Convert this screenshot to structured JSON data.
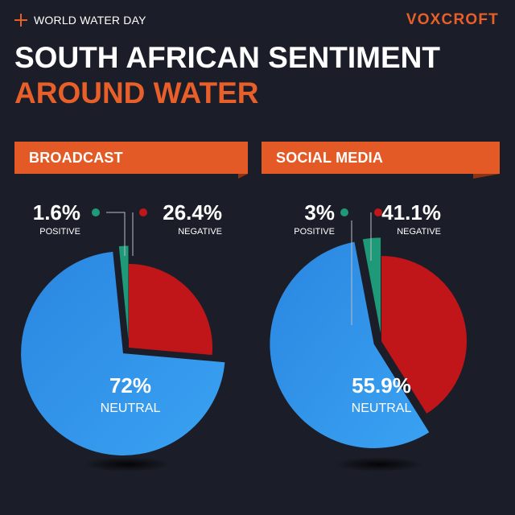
{
  "header": {
    "eyebrow": "WORLD WATER DAY",
    "brand": "VOXCROFT",
    "title_line1": "SOUTH AFRICAN SENTIMENT",
    "title_line2": "AROUND WATER"
  },
  "colors": {
    "background": "#1b1e28",
    "accent": "#e35a26",
    "positive": "#1f9a78",
    "negative": "#c0161a",
    "neutral": "#2f8fe6"
  },
  "chart_data": [
    {
      "type": "pie",
      "title": "BROADCAST",
      "series": [
        {
          "name": "POSITIVE",
          "value": 1.6,
          "label": "1.6%"
        },
        {
          "name": "NEGATIVE",
          "value": 26.4,
          "label": "26.4%"
        },
        {
          "name": "NEUTRAL",
          "value": 72,
          "label": "72%"
        }
      ]
    },
    {
      "type": "pie",
      "title": "SOCIAL MEDIA",
      "series": [
        {
          "name": "POSITIVE",
          "value": 3,
          "label": "3%"
        },
        {
          "name": "NEGATIVE",
          "value": 41.1,
          "label": "41.1%"
        },
        {
          "name": "NEUTRAL",
          "value": 55.9,
          "label": "55.9%"
        }
      ]
    }
  ]
}
